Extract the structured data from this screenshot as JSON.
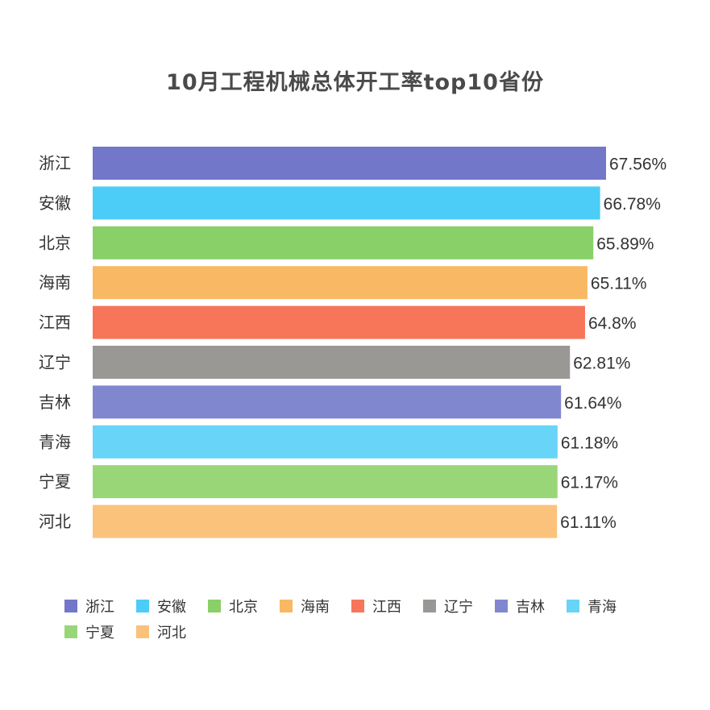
{
  "chart_data": {
    "type": "bar",
    "orientation": "horizontal",
    "title": "10月工程机械总体开工率top10省份",
    "categories": [
      "浙江",
      "安徽",
      "北京",
      "海南",
      "江西",
      "辽宁",
      "吉林",
      "青海",
      "宁夏",
      "河北"
    ],
    "values": [
      67.56,
      66.78,
      65.89,
      65.11,
      64.8,
      62.81,
      61.64,
      61.18,
      61.17,
      61.11
    ],
    "value_labels": [
      "67.56%",
      "66.78%",
      "65.89%",
      "65.11%",
      "64.8%",
      "62.81%",
      "61.64%",
      "61.18%",
      "61.17%",
      "61.11%"
    ],
    "colors": [
      "#7277c9",
      "#4ccdf7",
      "#89d068",
      "#f9b863",
      "#f7765a",
      "#9a9895",
      "#8187cf",
      "#67d4f8",
      "#99d678",
      "#fac27b"
    ],
    "xlim": [
      0,
      67.56
    ],
    "grid": false,
    "legend_position": "bottom",
    "xlabel": "",
    "ylabel": ""
  }
}
